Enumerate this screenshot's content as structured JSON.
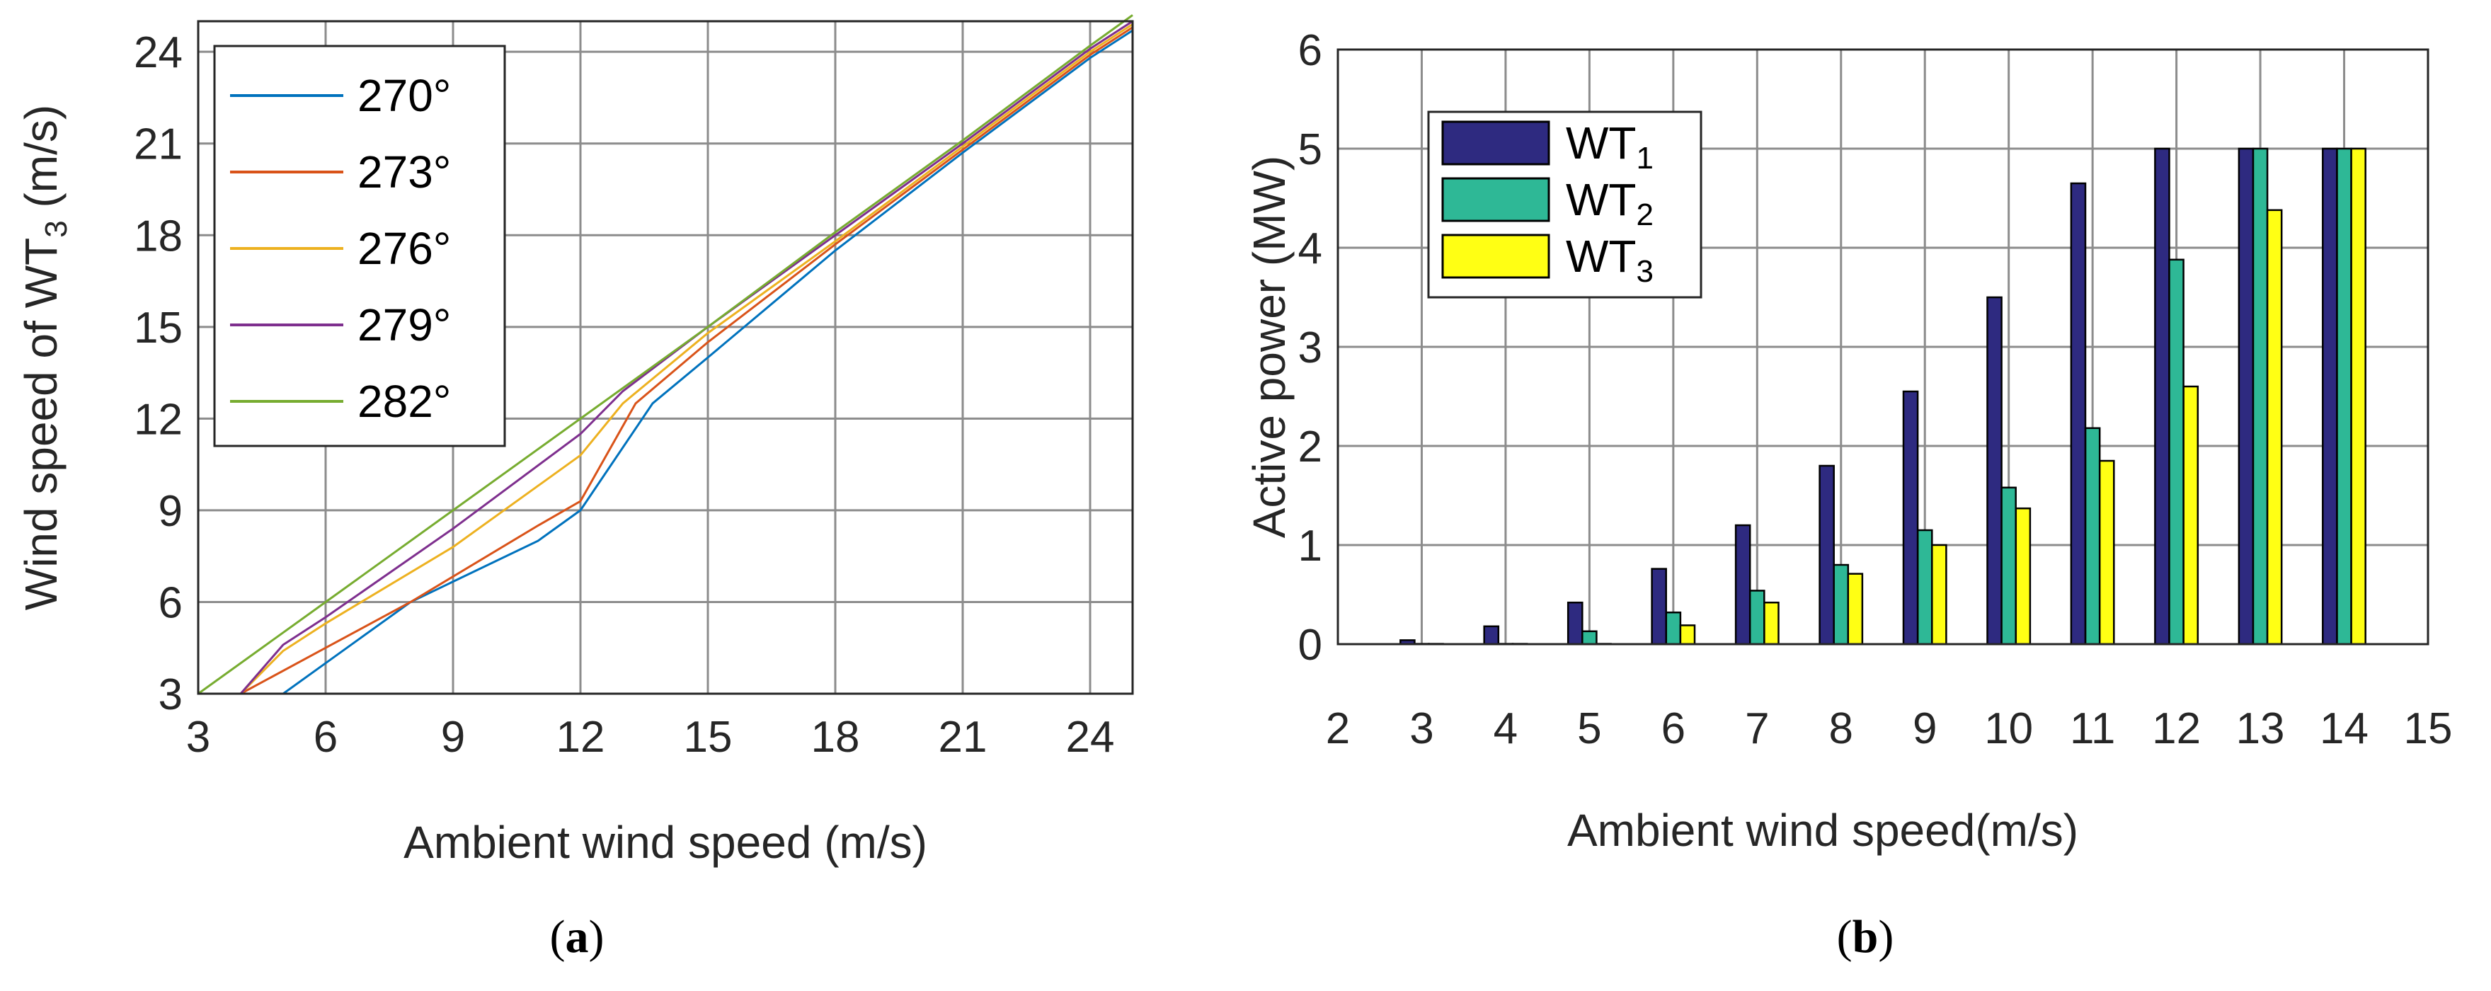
{
  "chart_data": [
    {
      "type": "line",
      "caption": {
        "open": "(",
        "letter": "a",
        "close": ")"
      },
      "xlabel": "Ambient wind speed (m/s)",
      "ylabel": {
        "prefix": "Wind speed of WT",
        "sub": "3",
        "suffix": " (m/s)"
      },
      "xlim": [
        3,
        25
      ],
      "ylim": [
        3,
        25
      ],
      "xticks": [
        "3",
        "6",
        "9",
        "12",
        "15",
        "18",
        "21",
        "24"
      ],
      "yticks": [
        "3",
        "6",
        "9",
        "12",
        "15",
        "18",
        "21",
        "24"
      ],
      "grid": true,
      "legend_position": "top-left",
      "series": [
        {
          "name": "270°",
          "color": "#0072BD",
          "x": [
            5,
            6,
            8,
            11,
            12,
            13.7,
            15,
            18,
            21,
            24,
            25
          ],
          "y": [
            3,
            4,
            6,
            8,
            9,
            12.5,
            14,
            17.5,
            20.7,
            23.8,
            24.7
          ]
        },
        {
          "name": "273°",
          "color": "#D95319",
          "x": [
            4,
            6,
            8,
            11,
            12,
            13.3,
            15,
            18,
            21,
            24,
            25
          ],
          "y": [
            3,
            4.5,
            6,
            8.5,
            9.3,
            12.5,
            14.5,
            17.7,
            20.8,
            23.9,
            24.8
          ]
        },
        {
          "name": "276°",
          "color": "#EDB120",
          "x": [
            4,
            5,
            6,
            9,
            12,
            13,
            15,
            18,
            21,
            24,
            25
          ],
          "y": [
            3,
            4.4,
            5.3,
            7.8,
            10.8,
            12.5,
            14.8,
            17.8,
            20.9,
            24.0,
            24.9
          ]
        },
        {
          "name": "279°",
          "color": "#7E2F8E",
          "x": [
            4,
            5,
            6,
            9,
            12,
            13,
            15,
            18,
            21,
            24,
            25
          ],
          "y": [
            3,
            4.6,
            5.5,
            8.4,
            11.5,
            12.9,
            15.0,
            18.0,
            21.0,
            24.1,
            25.0
          ]
        },
        {
          "name": "282°",
          "color": "#77AC30",
          "x": [
            3,
            6,
            9,
            12,
            15,
            18,
            21,
            24,
            25
          ],
          "y": [
            3,
            6,
            9,
            12,
            15,
            18.1,
            21.1,
            24.2,
            25.2
          ]
        }
      ]
    },
    {
      "type": "bar",
      "caption": {
        "open": "(",
        "letter": "b",
        "close": ")"
      },
      "xlabel": "Ambient wind speed(m/s)",
      "ylabel": "Active power (MW)",
      "xlim": [
        2,
        15
      ],
      "ylim": [
        0,
        6
      ],
      "xticks": [
        "2",
        "3",
        "4",
        "5",
        "6",
        "7",
        "8",
        "9",
        "10",
        "11",
        "12",
        "13",
        "14",
        "15"
      ],
      "yticks": [
        "0",
        "1",
        "2",
        "3",
        "4",
        "5",
        "6"
      ],
      "grid": true,
      "legend_position": "top-left",
      "categories": [
        3,
        4,
        5,
        6,
        7,
        8,
        9,
        10,
        11,
        12,
        13,
        14
      ],
      "series": [
        {
          "name": "WT",
          "sub": "1",
          "color": "#2E2A80",
          "values": [
            0.04,
            0.18,
            0.42,
            0.76,
            1.2,
            1.8,
            2.55,
            3.5,
            4.65,
            5.0,
            5.0,
            5.0
          ]
        },
        {
          "name": "WT",
          "sub": "2",
          "color": "#2EB896",
          "values": [
            0.0,
            0.0,
            0.13,
            0.32,
            0.54,
            0.8,
            1.15,
            1.58,
            2.18,
            3.88,
            5.0,
            5.0
          ]
        },
        {
          "name": "WT",
          "sub": "3",
          "color": "#FFFF14",
          "values": [
            0.0,
            0.0,
            0.0,
            0.19,
            0.42,
            0.71,
            1.0,
            1.37,
            1.85,
            2.6,
            4.38,
            5.0
          ]
        }
      ]
    }
  ]
}
